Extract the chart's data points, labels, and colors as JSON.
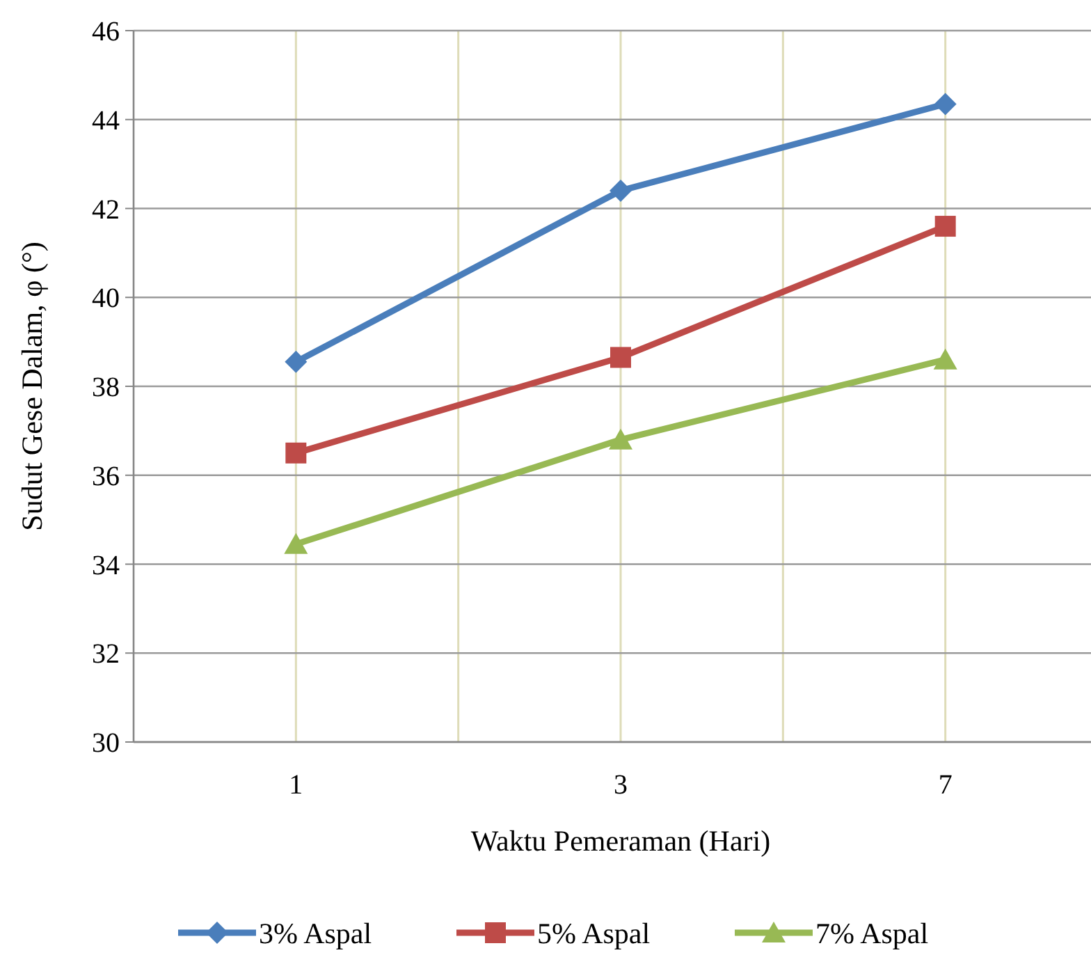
{
  "chart_data": {
    "type": "line",
    "xlabel": "Waktu Pemeraman (Hari)",
    "ylabel": "Sudut Gese Dalam, φ (°)",
    "categories": [
      "1",
      "3",
      "7"
    ],
    "series": [
      {
        "name": "3% Aspal",
        "color": "#4a7ebb",
        "marker": "diamond",
        "values": [
          38.55,
          42.4,
          44.35
        ]
      },
      {
        "name": "5% Aspal",
        "color": "#be4b48",
        "marker": "square",
        "values": [
          36.5,
          38.65,
          41.6
        ]
      },
      {
        "name": "7% Aspal",
        "color": "#98b954",
        "marker": "triangle",
        "values": [
          34.45,
          36.8,
          38.6
        ]
      }
    ],
    "ylim": [
      30,
      46
    ],
    "yticks": [
      30,
      32,
      34,
      36,
      38,
      40,
      42,
      44,
      46
    ],
    "grid": true,
    "legend": "bottom"
  }
}
